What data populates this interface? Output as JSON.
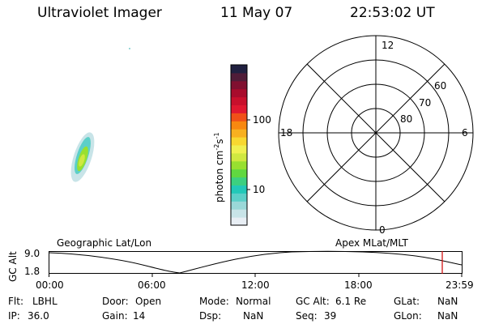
{
  "header": {
    "title": "Ultraviolet Imager",
    "date": "11 May 07",
    "time": "22:53:02 UT"
  },
  "colorbar": {
    "label": "photon cm",
    "label_sup1": "-2",
    "label_mid": "s",
    "label_sup2": "-1",
    "tick_100": "100",
    "tick_10": "10",
    "colors": [
      "#e8eef4",
      "#c8e4e8",
      "#9ad8d8",
      "#5ccfc8",
      "#22c8b8",
      "#3cd080",
      "#60d840",
      "#98e030",
      "#d0e840",
      "#f0f050",
      "#f8d830",
      "#f8b020",
      "#f88810",
      "#f05018",
      "#e01830",
      "#c8102c",
      "#a80c2c",
      "#801030",
      "#501c38",
      "#202040"
    ]
  },
  "polar": {
    "labels": {
      "top": "12",
      "bottom": "0",
      "left": "18",
      "right": "6"
    },
    "lat_labels": [
      "60",
      "70",
      "80"
    ]
  },
  "timeline": {
    "y_axis_label": "GC Alt",
    "y_top": "9.0",
    "y_bottom": "1.8",
    "left_title": "Geographic Lat/Lon",
    "right_title": "Apex MLat/MLT",
    "x_ticks": [
      "00:00",
      "06:00",
      "12:00",
      "18:00",
      "23:59"
    ],
    "marker_color": "#d00000"
  },
  "status": {
    "row1": {
      "flt_label": "Flt:",
      "flt_value": "LBHL",
      "door_label": "Door:",
      "door_value": "Open",
      "mode_label": "Mode:",
      "mode_value": "Normal",
      "gcalt_label": "GC Alt:",
      "gcalt_value": "6.1 Re",
      "glat_label": "GLat:",
      "glat_value": "NaN"
    },
    "row2": {
      "ip_label": "IP:",
      "ip_value": "36.0",
      "gain_label": "Gain:",
      "gain_value": "14",
      "dsp_label": "Dsp:",
      "dsp_value": "NaN",
      "seq_label": "Seq:",
      "seq_value": "39",
      "glon_label": "GLon:",
      "glon_value": "NaN"
    }
  }
}
